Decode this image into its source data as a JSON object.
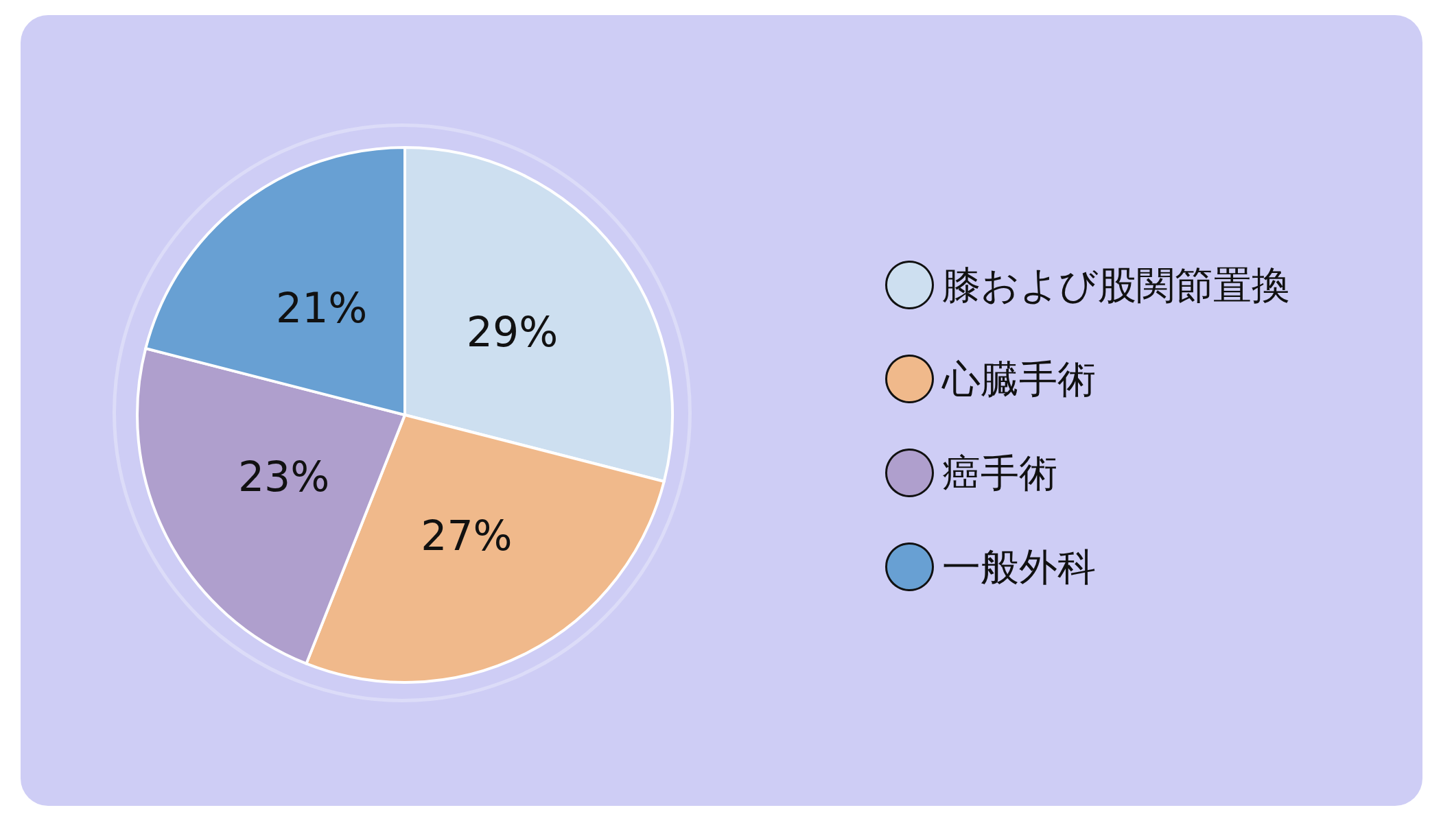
{
  "chart_data": {
    "type": "pie",
    "categories": [
      "膝および股関節置換",
      "心臓手術",
      "癌手術",
      "一般外科"
    ],
    "values": [
      29,
      27,
      23,
      21
    ],
    "value_labels": [
      "29%",
      "27%",
      "23%",
      "21%"
    ],
    "colors": [
      "#cddff0",
      "#f0b98b",
      "#af9fcd",
      "#68a0d3"
    ],
    "legend": "right"
  }
}
